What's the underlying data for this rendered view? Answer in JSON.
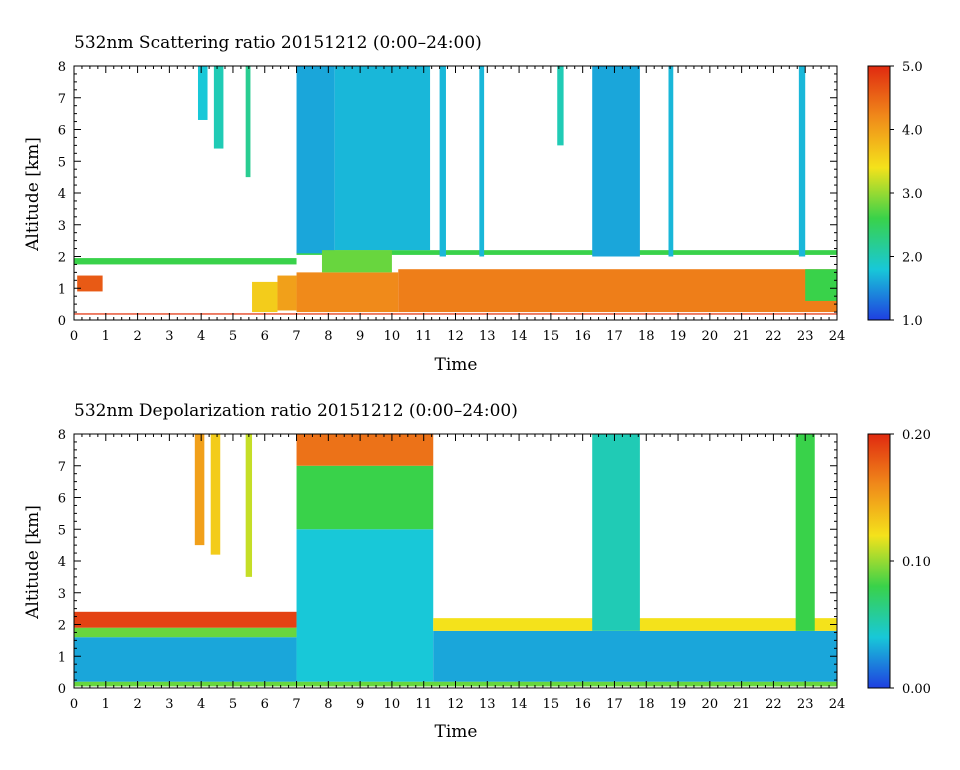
{
  "chart_data": [
    {
      "type": "heatmap",
      "title": "532nm Scattering ratio  20151212 (0:00–24:00)",
      "xlabel": "Time",
      "ylabel": "Altitude [km]",
      "xlim": [
        0,
        24
      ],
      "ylim": [
        0,
        8
      ],
      "xticks": [
        "0",
        "1",
        "2",
        "3",
        "4",
        "5",
        "6",
        "7",
        "8",
        "9",
        "10",
        "11",
        "12",
        "13",
        "14",
        "15",
        "16",
        "17",
        "18",
        "19",
        "20",
        "21",
        "22",
        "23",
        "24"
      ],
      "yticks": [
        "0",
        "1",
        "2",
        "3",
        "4",
        "5",
        "6",
        "7",
        "8"
      ],
      "colorbar": {
        "min": 1.0,
        "max": 5.0,
        "labels": [
          "1.0",
          "2.0",
          "3.0",
          "4.0",
          "5.0"
        ],
        "colors": [
          "#1f3fe0",
          "#18c8d8",
          "#39d24a",
          "#f4e21b",
          "#f08a1a",
          "#e02a10"
        ]
      },
      "bands": [
        {
          "x": [
            0.1,
            0.9
          ],
          "y": [
            0.9,
            1.4
          ],
          "value": 4.6
        },
        {
          "x": [
            0,
            24
          ],
          "y": [
            0.17,
            0.21
          ],
          "value": 4.9
        },
        {
          "x": [
            0,
            7.0
          ],
          "y": [
            1.75,
            1.95
          ],
          "value": 2.6
        },
        {
          "x": [
            7.0,
            24
          ],
          "y": [
            2.05,
            2.2
          ],
          "value": 2.6
        },
        {
          "x": [
            3.9,
            4.2
          ],
          "y": [
            6.3,
            8.0
          ],
          "value": 1.8
        },
        {
          "x": [
            4.4,
            4.7
          ],
          "y": [
            5.4,
            8.0
          ],
          "value": 2.0
        },
        {
          "x": [
            5.4,
            5.55
          ],
          "y": [
            4.5,
            8.0
          ],
          "value": 2.2
        },
        {
          "x": [
            5.6,
            6.4
          ],
          "y": [
            0.25,
            1.2
          ],
          "value": 3.6
        },
        {
          "x": [
            6.4,
            7.0
          ],
          "y": [
            0.3,
            1.4
          ],
          "value": 4.0
        },
        {
          "x": [
            7.0,
            8.2
          ],
          "y": [
            2.1,
            8.0
          ],
          "value": 1.6
        },
        {
          "x": [
            8.2,
            11.2
          ],
          "y": [
            2.2,
            8.0
          ],
          "value": 1.7
        },
        {
          "x": [
            7.0,
            10.2
          ],
          "y": [
            0.25,
            1.5
          ],
          "value": 4.2
        },
        {
          "x": [
            7.8,
            10.0
          ],
          "y": [
            1.5,
            2.2
          ],
          "value": 2.8
        },
        {
          "x": [
            10.2,
            24
          ],
          "y": [
            0.25,
            1.6
          ],
          "value": 4.3
        },
        {
          "x": [
            11.5,
            11.7
          ],
          "y": [
            2.0,
            8.0
          ],
          "value": 1.7
        },
        {
          "x": [
            12.75,
            12.9
          ],
          "y": [
            2.0,
            8.0
          ],
          "value": 1.7
        },
        {
          "x": [
            15.2,
            15.4
          ],
          "y": [
            5.5,
            8.0
          ],
          "value": 2.0
        },
        {
          "x": [
            16.3,
            17.8
          ],
          "y": [
            2.0,
            8.0
          ],
          "value": 1.6
        },
        {
          "x": [
            18.7,
            18.85
          ],
          "y": [
            2.0,
            8.0
          ],
          "value": 1.7
        },
        {
          "x": [
            22.8,
            23.0
          ],
          "y": [
            2.0,
            8.0
          ],
          "value": 1.7
        },
        {
          "x": [
            23.0,
            24
          ],
          "y": [
            0.6,
            1.6
          ],
          "value": 2.6
        }
      ]
    },
    {
      "type": "heatmap",
      "title": "532nm Depolarization ratio  20151212 (0:00–24:00)",
      "xlabel": "Time",
      "ylabel": "Altitude [km]",
      "xlim": [
        0,
        24
      ],
      "ylim": [
        0,
        8
      ],
      "xticks": [
        "0",
        "1",
        "2",
        "3",
        "4",
        "5",
        "6",
        "7",
        "8",
        "9",
        "10",
        "11",
        "12",
        "13",
        "14",
        "15",
        "16",
        "17",
        "18",
        "19",
        "20",
        "21",
        "22",
        "23",
        "24"
      ],
      "yticks": [
        "0",
        "1",
        "2",
        "3",
        "4",
        "5",
        "6",
        "7",
        "8"
      ],
      "colorbar": {
        "min": 0.0,
        "max": 0.2,
        "labels": [
          "0.00",
          "0.10",
          "0.20"
        ],
        "colors": [
          "#1f3fe0",
          "#18c8d8",
          "#39d24a",
          "#f4e21b",
          "#f08a1a",
          "#e02a10"
        ]
      },
      "bands": [
        {
          "x": [
            0,
            24
          ],
          "y": [
            0.05,
            0.2
          ],
          "value": 0.09
        },
        {
          "x": [
            0,
            7.0
          ],
          "y": [
            0.2,
            1.6
          ],
          "value": 0.03
        },
        {
          "x": [
            0,
            7.0
          ],
          "y": [
            1.6,
            1.9
          ],
          "value": 0.09
        },
        {
          "x": [
            0,
            7.0
          ],
          "y": [
            1.9,
            2.4
          ],
          "value": 0.19
        },
        {
          "x": [
            3.8,
            4.1
          ],
          "y": [
            4.5,
            8.0
          ],
          "value": 0.15
        },
        {
          "x": [
            4.3,
            4.6
          ],
          "y": [
            4.2,
            8.0
          ],
          "value": 0.13
        },
        {
          "x": [
            5.4,
            5.6
          ],
          "y": [
            3.5,
            8.0
          ],
          "value": 0.11
        },
        {
          "x": [
            7.0,
            11.3
          ],
          "y": [
            0.2,
            5.0
          ],
          "value": 0.04
        },
        {
          "x": [
            7.0,
            11.3
          ],
          "y": [
            5.0,
            7.0
          ],
          "value": 0.08
        },
        {
          "x": [
            7.0,
            11.3
          ],
          "y": [
            7.0,
            8.0
          ],
          "value": 0.17
        },
        {
          "x": [
            11.3,
            24
          ],
          "y": [
            0.2,
            1.8
          ],
          "value": 0.03
        },
        {
          "x": [
            11.3,
            24
          ],
          "y": [
            1.8,
            2.2
          ],
          "value": 0.12
        },
        {
          "x": [
            16.3,
            17.8
          ],
          "y": [
            1.8,
            8.0
          ],
          "value": 0.05
        },
        {
          "x": [
            22.7,
            23.3
          ],
          "y": [
            1.8,
            8.0
          ],
          "value": 0.08
        }
      ]
    }
  ]
}
